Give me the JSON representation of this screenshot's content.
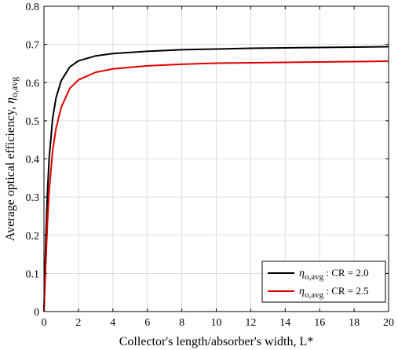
{
  "chart_data": {
    "type": "line",
    "title": "",
    "xlabel": "Collector's length/absorber's width, L*",
    "ylabel_text": "Average optical efficiency, ",
    "ylabel_symbol": "η",
    "ylabel_subscript": "o,avg",
    "xlim": [
      0,
      20
    ],
    "ylim": [
      0,
      0.8
    ],
    "xticks": [
      0,
      2,
      4,
      6,
      8,
      10,
      12,
      14,
      16,
      18,
      20
    ],
    "yticks": [
      0,
      0.1,
      0.2,
      0.3,
      0.4,
      0.5,
      0.6,
      0.7,
      0.8
    ],
    "xtick_labels": [
      "0",
      "2",
      "4",
      "6",
      "8",
      "10",
      "12",
      "14",
      "16",
      "18",
      "20"
    ],
    "ytick_labels": [
      "0",
      "0.1",
      "0.2",
      "0.3",
      "0.4",
      "0.5",
      "0.6",
      "0.7",
      "0.8"
    ],
    "grid": true,
    "legend_position": "bottom-right",
    "series": [
      {
        "name": "η o,avg : CR = 2.0",
        "legend_symbol": "η",
        "legend_subscript": "o,avg",
        "legend_suffix": " : CR = 2.0",
        "color": "#000000",
        "x": [
          0.05,
          0.1,
          0.2,
          0.3,
          0.5,
          0.7,
          1.0,
          1.5,
          2.0,
          3.0,
          4.0,
          6.0,
          8.0,
          10.0,
          12.0,
          14.0,
          16.0,
          18.0,
          20.0
        ],
        "y": [
          0.092,
          0.175,
          0.31,
          0.4,
          0.505,
          0.56,
          0.605,
          0.641,
          0.657,
          0.67,
          0.676,
          0.682,
          0.686,
          0.688,
          0.69,
          0.691,
          0.692,
          0.693,
          0.694
        ]
      },
      {
        "name": "η o,avg : CR = 2.5",
        "legend_symbol": "η",
        "legend_subscript": "o,avg",
        "legend_suffix": " : CR = 2.5",
        "color": "#e00000",
        "x": [
          0.05,
          0.1,
          0.2,
          0.3,
          0.5,
          0.7,
          1.0,
          1.5,
          2.0,
          3.0,
          4.0,
          6.0,
          8.0,
          10.0,
          12.0,
          14.0,
          16.0,
          18.0,
          20.0
        ],
        "y": [
          0.06,
          0.12,
          0.23,
          0.315,
          0.42,
          0.48,
          0.535,
          0.585,
          0.607,
          0.627,
          0.636,
          0.644,
          0.648,
          0.651,
          0.652,
          0.653,
          0.654,
          0.655,
          0.656
        ]
      }
    ]
  }
}
